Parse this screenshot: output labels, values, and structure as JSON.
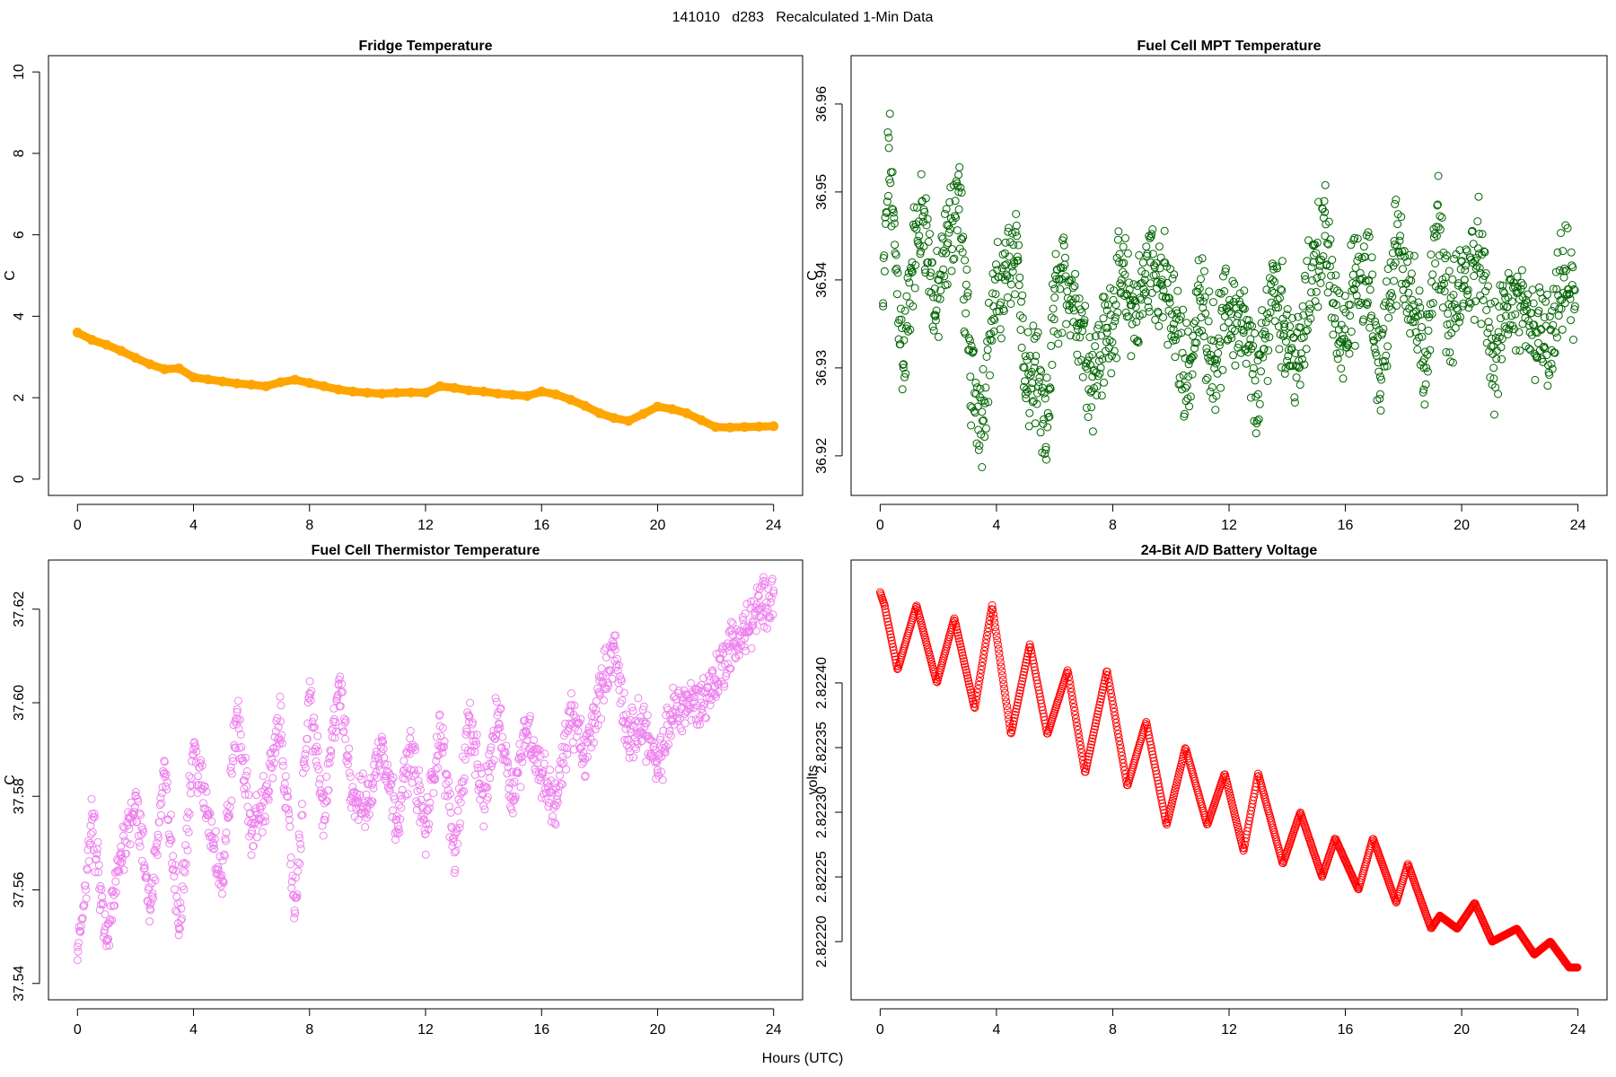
{
  "figure": {
    "suptitle": "141010   d283   Recalculated 1-Min Data",
    "xlabel": "Hours (UTC)"
  },
  "chart_data": [
    {
      "type": "line",
      "title": "Fridge Temperature",
      "ylabel": "C",
      "xlabel": "",
      "xlim": [
        -1,
        25
      ],
      "ylim": [
        -0.4,
        10.4
      ],
      "xticks": [
        0,
        4,
        8,
        12,
        16,
        20,
        24
      ],
      "yticks": [
        0,
        2,
        4,
        6,
        8,
        10
      ],
      "xtick_labels": [
        "0",
        "4",
        "8",
        "12",
        "16",
        "20",
        "24"
      ],
      "ytick_labels": [
        "0",
        "2",
        "4",
        "6",
        "8",
        "10"
      ],
      "grid": false,
      "color": "#ffa500",
      "series": [
        {
          "x": [
            0,
            0.5,
            1.0,
            1.5,
            2.0,
            2.5,
            3.0,
            3.5,
            4.0,
            4.5,
            5.0,
            5.5,
            6.0,
            6.5,
            7.0,
            7.5,
            8.0,
            8.5,
            9.0,
            9.5,
            10.0,
            10.5,
            11.0,
            11.5,
            12.0,
            12.5,
            13.0,
            13.5,
            14.0,
            14.5,
            15.0,
            15.5,
            16.0,
            16.5,
            17.0,
            17.5,
            18.0,
            18.5,
            19.0,
            19.5,
            20.0,
            20.5,
            21.0,
            21.5,
            22.0,
            22.5,
            23.0,
            23.5,
            24.0
          ],
          "values": [
            3.6,
            3.42,
            3.3,
            3.15,
            2.98,
            2.82,
            2.7,
            2.72,
            2.5,
            2.45,
            2.4,
            2.35,
            2.32,
            2.28,
            2.38,
            2.44,
            2.36,
            2.28,
            2.2,
            2.15,
            2.12,
            2.1,
            2.12,
            2.13,
            2.12,
            2.28,
            2.24,
            2.18,
            2.15,
            2.1,
            2.07,
            2.04,
            2.15,
            2.08,
            1.95,
            1.8,
            1.62,
            1.5,
            1.43,
            1.6,
            1.78,
            1.72,
            1.62,
            1.45,
            1.28,
            1.27,
            1.28,
            1.29,
            1.3
          ]
        }
      ]
    },
    {
      "type": "scatter",
      "title": "Fuel Cell MPT Temperature",
      "ylabel": "C",
      "xlabel": "",
      "xlim": [
        -1,
        25
      ],
      "ylim": [
        36.9155,
        36.9655
      ],
      "xticks": [
        0,
        4,
        8,
        12,
        16,
        20,
        24
      ],
      "yticks": [
        36.92,
        36.93,
        36.94,
        36.95,
        36.96
      ],
      "xtick_labels": [
        "0",
        "4",
        "8",
        "12",
        "16",
        "20",
        "24"
      ],
      "ytick_labels": [
        "36.92",
        "36.93",
        "36.94",
        "36.95",
        "36.96"
      ],
      "grid": false,
      "color": "#006400",
      "series": [
        {
          "x": [
            0.1,
            0.3,
            0.5,
            0.8,
            1.1,
            1.5,
            1.9,
            2.3,
            2.7,
            3.1,
            3.5,
            3.9,
            4.3,
            4.7,
            5.0,
            5.3,
            5.7,
            6.0,
            6.5,
            6.9,
            7.3,
            7.8,
            8.3,
            8.8,
            9.3,
            9.7,
            10.1,
            10.6,
            11.0,
            11.5,
            12.0,
            12.5,
            13.0,
            13.5,
            13.9,
            14.4,
            14.9,
            15.3,
            15.8,
            16.3,
            16.8,
            17.2,
            17.7,
            18.2,
            18.7,
            19.2,
            19.6,
            20.1,
            20.6,
            21.1,
            21.6,
            22.1,
            22.6,
            23.1,
            23.5,
            23.9
          ],
          "values": [
            36.937,
            36.955,
            36.944,
            36.93,
            36.942,
            36.948,
            36.936,
            36.944,
            36.95,
            36.929,
            36.925,
            36.937,
            36.94,
            36.945,
            36.927,
            36.93,
            36.921,
            36.938,
            36.94,
            36.935,
            36.929,
            36.934,
            36.94,
            36.936,
            36.942,
            36.94,
            36.935,
            36.929,
            36.938,
            36.931,
            36.937,
            36.934,
            36.927,
            36.94,
            36.935,
            36.93,
            36.942,
            36.945,
            36.933,
            36.939,
            36.94,
            36.929,
            36.944,
            36.94,
            36.93,
            36.946,
            36.935,
            36.94,
            36.943,
            36.93,
            36.938,
            36.935,
            36.934,
            36.932,
            36.941,
            36.937
          ]
        }
      ]
    },
    {
      "type": "scatter",
      "title": "Fuel Cell Thermistor Temperature",
      "ylabel": "C",
      "xlabel": "",
      "xlim": [
        -1,
        25
      ],
      "ylim": [
        37.5365,
        37.6305
      ],
      "xticks": [
        0,
        4,
        8,
        12,
        16,
        20,
        24
      ],
      "yticks": [
        37.54,
        37.56,
        37.58,
        37.6,
        37.62
      ],
      "xtick_labels": [
        "0",
        "4",
        "8",
        "12",
        "16",
        "20",
        "24"
      ],
      "ytick_labels": [
        "37.54",
        "37.56",
        "37.58",
        "37.60",
        "37.62"
      ],
      "grid": false,
      "color": "#ee82ee",
      "series": [
        {
          "x": [
            0,
            0.5,
            1.0,
            1.5,
            2.0,
            2.5,
            3.0,
            3.5,
            4.0,
            4.5,
            5.0,
            5.5,
            6.0,
            6.5,
            7.0,
            7.5,
            8.0,
            8.5,
            9.0,
            9.5,
            10.0,
            10.5,
            11.0,
            11.5,
            12.0,
            12.5,
            13.0,
            13.5,
            14.0,
            14.5,
            15.0,
            15.5,
            16.0,
            16.5,
            17.0,
            17.5,
            18.0,
            18.5,
            19.0,
            19.5,
            20.0,
            20.5,
            21.0,
            21.5,
            22.0,
            22.5,
            23.0,
            23.5,
            24.0
          ],
          "values": [
            37.545,
            37.575,
            37.548,
            37.568,
            37.58,
            37.556,
            37.585,
            37.552,
            37.59,
            37.576,
            37.562,
            37.598,
            37.572,
            37.58,
            37.596,
            37.555,
            37.602,
            37.575,
            37.604,
            37.58,
            37.578,
            37.592,
            37.575,
            37.59,
            37.572,
            37.595,
            37.568,
            37.597,
            37.578,
            37.598,
            37.58,
            37.595,
            37.585,
            37.578,
            37.598,
            37.588,
            37.602,
            37.612,
            37.592,
            37.596,
            37.585,
            37.598,
            37.6,
            37.6,
            37.605,
            37.612,
            37.615,
            37.62,
            37.624
          ]
        }
      ]
    },
    {
      "type": "line",
      "title": "24-Bit A/D Battery Voltage",
      "ylabel": "volts",
      "xlabel": "",
      "xlim": [
        -1,
        25
      ],
      "ylim": [
        2.822155,
        2.822495
      ],
      "xticks": [
        0,
        4,
        8,
        12,
        16,
        20,
        24
      ],
      "yticks": [
        2.8222,
        2.82225,
        2.8223,
        2.82235,
        2.8224
      ],
      "xtick_labels": [
        "0",
        "4",
        "8",
        "12",
        "16",
        "20",
        "24"
      ],
      "ytick_labels": [
        "2.82220",
        "2.82225",
        "2.82230",
        "2.82235",
        "2.82240"
      ],
      "grid": false,
      "color": "#ff0000",
      "series": [
        {
          "x": [
            0,
            0.15,
            0.6,
            1.25,
            1.95,
            2.55,
            3.25,
            3.85,
            4.5,
            5.15,
            5.75,
            6.45,
            7.05,
            7.8,
            8.5,
            9.15,
            9.85,
            10.5,
            11.25,
            11.85,
            12.5,
            13.0,
            13.85,
            14.45,
            15.2,
            15.65,
            16.45,
            16.95,
            17.75,
            18.15,
            18.95,
            19.25,
            19.85,
            20.45,
            21.05,
            21.9,
            22.5,
            23.05,
            23.7,
            24.0
          ],
          "values": [
            2.82247,
            2.82246,
            2.82241,
            2.82246,
            2.8224,
            2.82245,
            2.82238,
            2.82246,
            2.82236,
            2.82243,
            2.82236,
            2.82241,
            2.82233,
            2.82241,
            2.82232,
            2.82237,
            2.82229,
            2.82235,
            2.82229,
            2.82233,
            2.82227,
            2.82233,
            2.82226,
            2.8223,
            2.82225,
            2.82228,
            2.82224,
            2.82228,
            2.82223,
            2.82226,
            2.82221,
            2.82222,
            2.82221,
            2.82223,
            2.8222,
            2.82221,
            2.82219,
            2.8222,
            2.82218,
            2.82218
          ]
        }
      ]
    }
  ]
}
